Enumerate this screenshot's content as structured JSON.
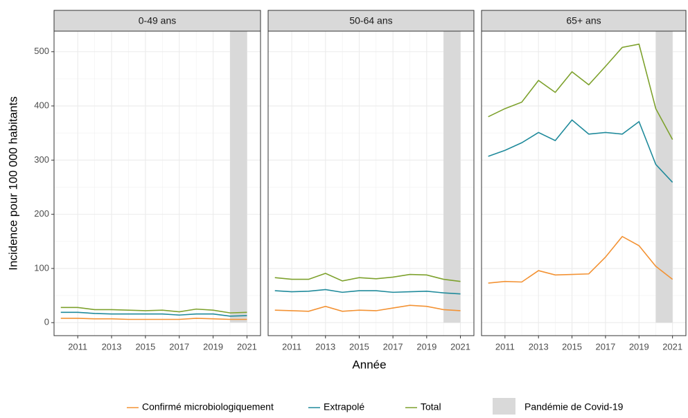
{
  "chart_data": {
    "type": "line",
    "facets": [
      "0-49 ans",
      "50-64 ans",
      "65+ ans"
    ],
    "xlabel": "Année",
    "ylabel": "Incidence pour 100 000 habitants",
    "x": [
      2010,
      2011,
      2012,
      2013,
      2014,
      2015,
      2016,
      2017,
      2018,
      2019,
      2020,
      2021
    ],
    "xlim": [
      2009.6,
      2021.8
    ],
    "xticks": [
      2011,
      2013,
      2015,
      2017,
      2019,
      2021
    ],
    "ylim": [
      -24,
      538
    ],
    "yticks": [
      0,
      100,
      200,
      300,
      400,
      500
    ],
    "grid": true,
    "legend": "bottom",
    "series": [
      {
        "name": "Confirmé microbiologiquement",
        "color": "#f39233",
        "values": [
          [
            8,
            8,
            7,
            7,
            6,
            6,
            6,
            6,
            8,
            7,
            6,
            6
          ],
          [
            23,
            22,
            21,
            30,
            21,
            23,
            22,
            27,
            32,
            30,
            24,
            22
          ],
          [
            73,
            76,
            75,
            96,
            88,
            89,
            90,
            121,
            159,
            142,
            104,
            80
          ]
        ]
      },
      {
        "name": "Extrapolé",
        "color": "#1f8a9b",
        "values": [
          [
            19,
            19,
            17,
            16,
            16,
            16,
            16,
            14,
            16,
            16,
            12,
            13
          ],
          [
            59,
            57,
            58,
            61,
            56,
            59,
            59,
            56,
            57,
            58,
            55,
            53
          ],
          [
            307,
            318,
            332,
            351,
            336,
            374,
            348,
            351,
            348,
            371,
            292,
            259
          ]
        ]
      },
      {
        "name": "Total",
        "color": "#7da12c",
        "values": [
          [
            28,
            28,
            24,
            24,
            23,
            22,
            23,
            20,
            25,
            23,
            18,
            19
          ],
          [
            83,
            80,
            80,
            91,
            77,
            83,
            81,
            84,
            89,
            88,
            80,
            76
          ],
          [
            380,
            395,
            407,
            447,
            425,
            463,
            439,
            473,
            508,
            514,
            395,
            338
          ]
        ]
      }
    ],
    "shade": {
      "label": "Pandémie de Covid-19",
      "xmin": 2020,
      "xmax": 2021,
      "ymin": 0,
      "color": "#d9d9d9"
    }
  }
}
